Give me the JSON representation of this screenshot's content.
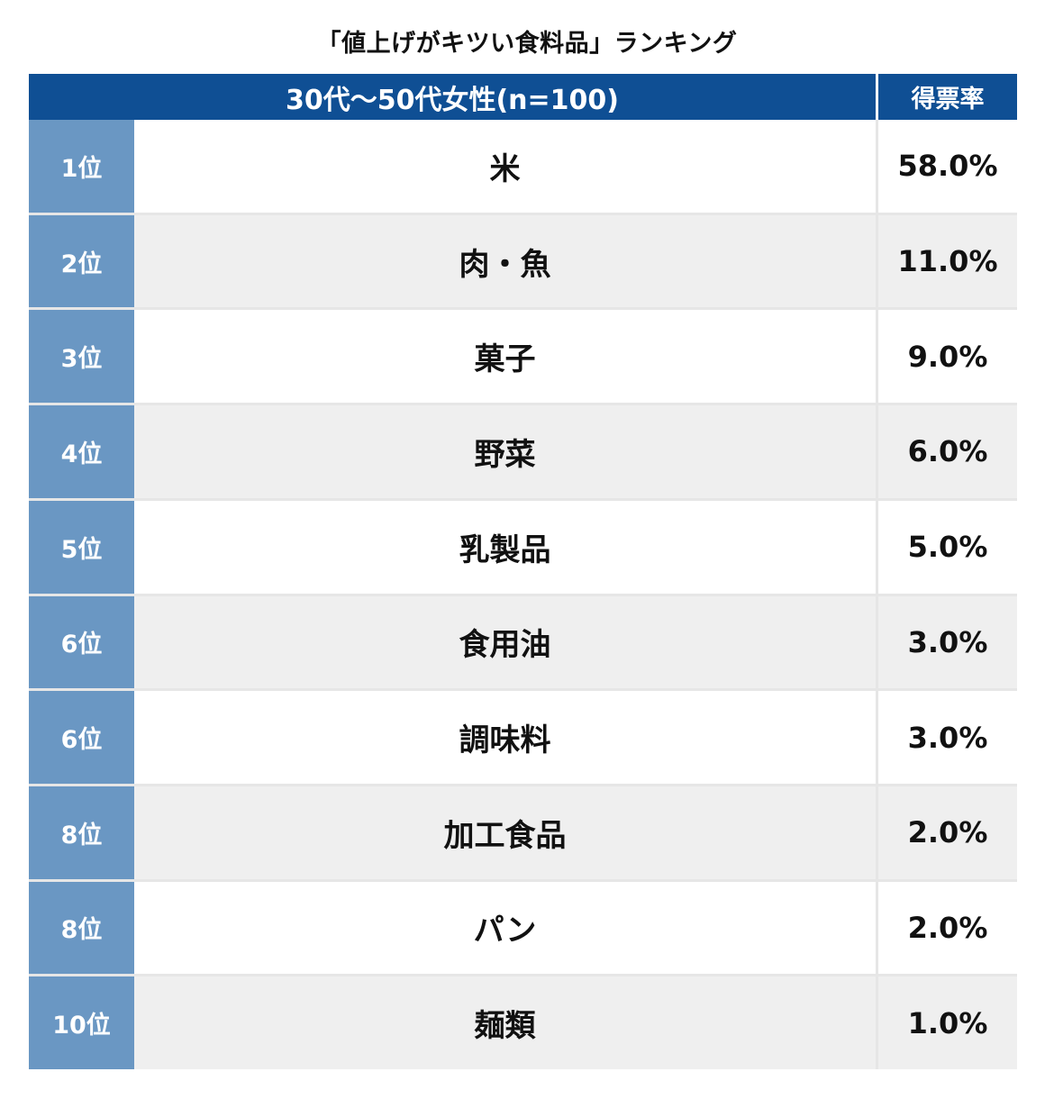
{
  "chart_data": {
    "type": "table",
    "title": "「値上げがキツい食料品」ランキング",
    "columns": [
      "30代〜50代女性(n=100)",
      "得票率"
    ],
    "rows": [
      {
        "rank": "1位",
        "item": "米",
        "rate": "58.0%",
        "value": 58.0
      },
      {
        "rank": "2位",
        "item": "肉・魚",
        "rate": "11.0%",
        "value": 11.0
      },
      {
        "rank": "3位",
        "item": "菓子",
        "rate": "9.0%",
        "value": 9.0
      },
      {
        "rank": "4位",
        "item": "野菜",
        "rate": "6.0%",
        "value": 6.0
      },
      {
        "rank": "5位",
        "item": "乳製品",
        "rate": "5.0%",
        "value": 5.0
      },
      {
        "rank": "6位",
        "item": "食用油",
        "rate": "3.0%",
        "value": 3.0
      },
      {
        "rank": "6位",
        "item": "調味料",
        "rate": "3.0%",
        "value": 3.0
      },
      {
        "rank": "8位",
        "item": "加工食品",
        "rate": "2.0%",
        "value": 2.0
      },
      {
        "rank": "8位",
        "item": "パン",
        "rate": "2.0%",
        "value": 2.0
      },
      {
        "rank": "10位",
        "item": "麺類",
        "rate": "1.0%",
        "value": 1.0
      }
    ],
    "colors": {
      "header_bg": "#0f4f94",
      "rank_bg": "#6a97c3",
      "row_alt_bg": "#efefef"
    }
  }
}
